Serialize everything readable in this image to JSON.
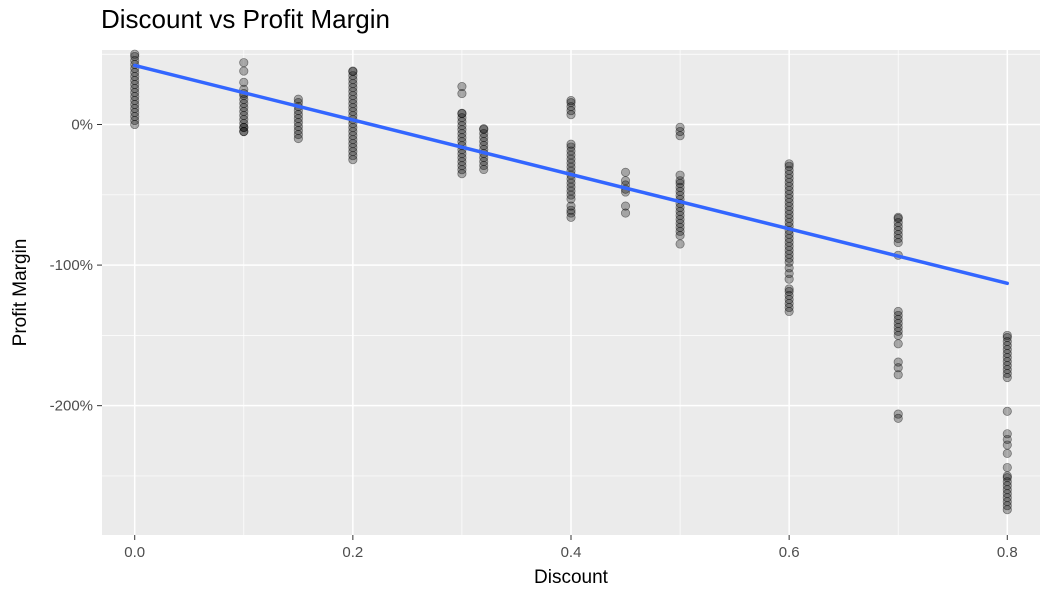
{
  "chart_data": {
    "type": "scatter",
    "title": "Discount vs Profit Margin",
    "xlabel": "Discount",
    "ylabel": "Profit Margin",
    "xlim": [
      -0.03,
      0.83
    ],
    "ylim": [
      -2.92,
      0.53
    ],
    "x_ticks": [
      0.0,
      0.2,
      0.4,
      0.6,
      0.8
    ],
    "x_tick_labels": [
      "0.0",
      "0.2",
      "0.4",
      "0.6",
      "0.8"
    ],
    "y_ticks": [
      0.0,
      -1.0,
      -2.0
    ],
    "y_tick_labels": [
      "0%",
      "-100%",
      "-200%"
    ],
    "grid": true,
    "background": "#ebebeb",
    "point_color": "#000000",
    "point_alpha": 0.3,
    "trend_color": "#3366ff",
    "trend_line": {
      "x": [
        0.0,
        0.8
      ],
      "y": [
        0.42,
        -1.13
      ]
    },
    "clusters": [
      {
        "x": 0.0,
        "range": [
          0.0,
          0.5
        ]
      },
      {
        "x": 0.1,
        "range": [
          -0.05,
          0.22
        ]
      },
      {
        "x": 0.1,
        "values": [
          0.44,
          0.38,
          0.3,
          0.25,
          -0.02,
          -0.05
        ]
      },
      {
        "x": 0.15,
        "range": [
          -0.1,
          0.18
        ]
      },
      {
        "x": 0.2,
        "range": [
          -0.25,
          0.38
        ]
      },
      {
        "x": 0.3,
        "range": [
          -0.35,
          0.08
        ]
      },
      {
        "x": 0.3,
        "values": [
          0.27,
          0.22
        ]
      },
      {
        "x": 0.32,
        "range": [
          -0.32,
          -0.03
        ]
      },
      {
        "x": 0.4,
        "range": [
          -0.53,
          -0.14
        ]
      },
      {
        "x": 0.4,
        "range": [
          0.07,
          0.17
        ]
      },
      {
        "x": 0.4,
        "values": [
          -0.58,
          -0.61,
          -0.63,
          -0.66
        ]
      },
      {
        "x": 0.45,
        "values": [
          -0.34,
          -0.4,
          -0.43,
          -0.46,
          -0.48,
          -0.58,
          -0.63
        ]
      },
      {
        "x": 0.5,
        "range": [
          -0.76,
          -0.4
        ]
      },
      {
        "x": 0.5,
        "values": [
          -0.02,
          -0.05,
          -0.08,
          -0.36,
          -0.79,
          -0.85
        ]
      },
      {
        "x": 0.6,
        "range": [
          -0.98,
          -0.28
        ]
      },
      {
        "x": 0.6,
        "range": [
          -1.33,
          -1.17
        ]
      },
      {
        "x": 0.6,
        "values": [
          -1.02,
          -1.06,
          -1.1
        ]
      },
      {
        "x": 0.7,
        "range": [
          -0.84,
          -0.66
        ]
      },
      {
        "x": 0.7,
        "range": [
          -1.5,
          -1.33
        ]
      },
      {
        "x": 0.7,
        "values": [
          -1.56,
          -1.69,
          -1.73,
          -1.78,
          -2.06,
          -2.09,
          -0.93
        ]
      },
      {
        "x": 0.8,
        "range": [
          -1.8,
          -1.5
        ]
      },
      {
        "x": 0.8,
        "range": [
          -2.74,
          -2.5
        ]
      },
      {
        "x": 0.8,
        "values": [
          -2.04,
          -2.2,
          -2.24,
          -2.28,
          -2.34,
          -2.44
        ]
      }
    ]
  }
}
